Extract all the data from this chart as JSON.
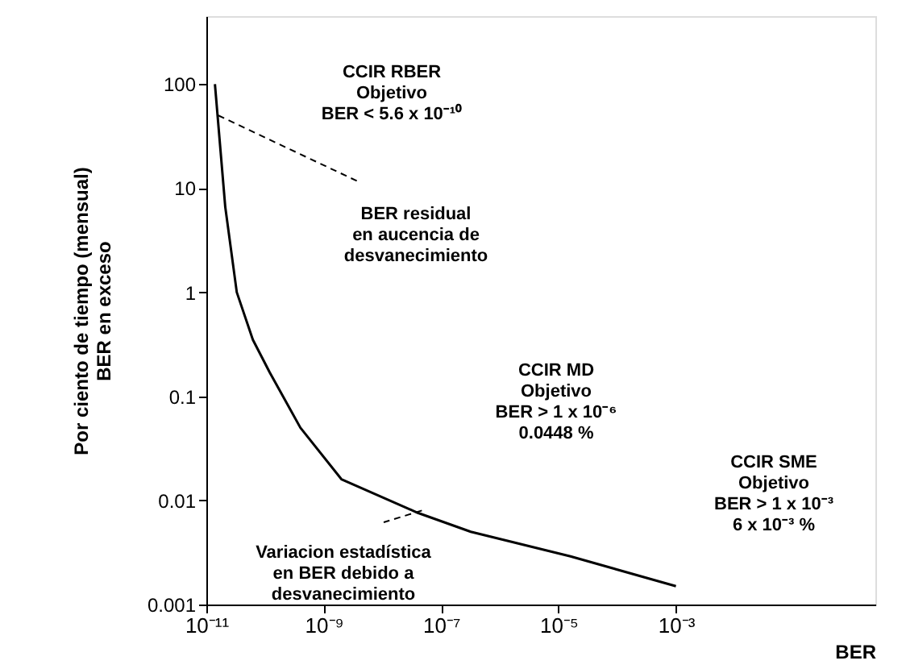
{
  "chart_data": {
    "type": "line",
    "ylabel": "Por ciento de tiempo (mensual)\nBER en exceso",
    "xlabel": "BER",
    "x": [
      1.4e-11,
      2.1e-11,
      3.3e-11,
      6.2e-11,
      1.2e-10,
      4e-10,
      2e-09,
      4e-08,
      3.2e-07,
      1.6e-05,
      0.001
    ],
    "series": [
      {
        "color": "#000000",
        "values": [
          100,
          6.6,
          1,
          0.35,
          0.17,
          0.05,
          0.016,
          0.0076,
          0.005,
          0.0029,
          0.0015
        ]
      }
    ],
    "log": "xy",
    "xlim": [
      1e-11,
      2.5
    ],
    "ylim": [
      0.001,
      450
    ],
    "xticks": [
      {
        "value": 1e-11,
        "label": "10⁻¹¹"
      },
      {
        "value": 1e-09,
        "label": "10⁻⁹"
      },
      {
        "value": 1e-07,
        "label": "10⁻⁷"
      },
      {
        "value": 1e-05,
        "label": "10⁻⁵"
      },
      {
        "value": 0.001,
        "label": "10⁻³"
      }
    ],
    "yticks": [
      0.001,
      0.01,
      0.1,
      1,
      10,
      100
    ],
    "grid": false,
    "legend": false,
    "marker": "none",
    "line_style": "solid",
    "annotations": [
      "CCIR RBER\nObjetivo\nBER < 5.6 x 10⁻¹⁰",
      {
        "text": "BER residual\nen aucencia de\ndesvanecimiento",
        "x": 1.6e-11,
        "y": 50
      },
      "CCIR MD\nObjetivo\nBER > 1 x 10⁻⁶\n0.0448 %",
      "CCIR  SME\nObjetivo\nBER > 1 x 10⁻³\n6 x 10⁻³ %",
      {
        "text": "Variacion estadística\nen BER debido a\ndesvanecimiento",
        "x": 4.7e-08,
        "y": 0.008
      }
    ]
  }
}
